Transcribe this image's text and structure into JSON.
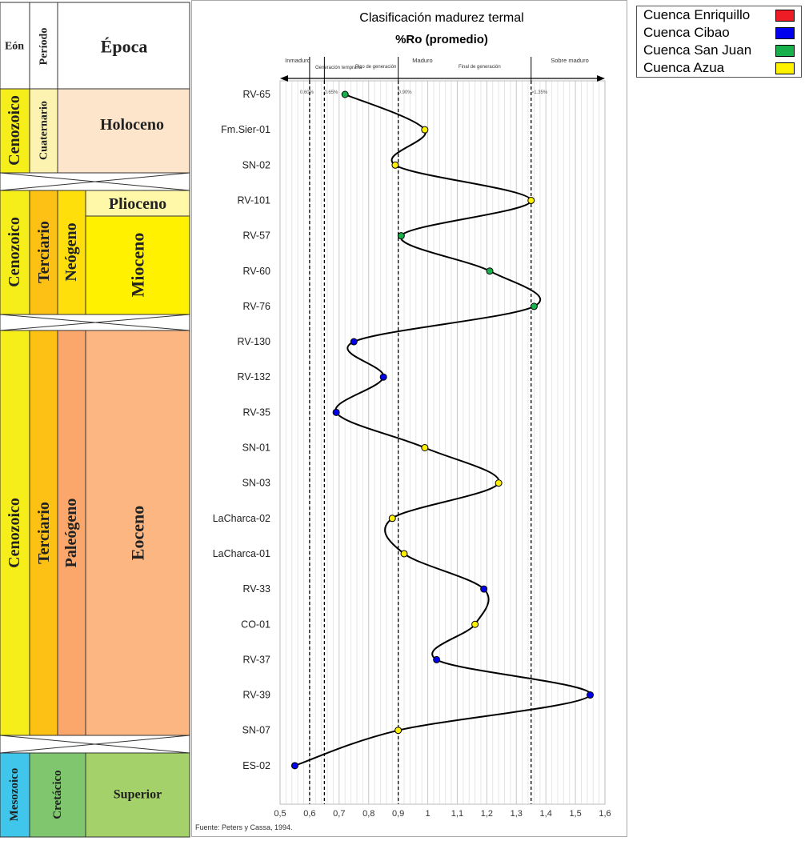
{
  "stratigraphy": {
    "headers": {
      "eon": "Eón",
      "period": "Período",
      "epoch": "Época"
    },
    "blocks": [
      {
        "eon": "Cenozoico",
        "period": "Cuaternario",
        "epochs": [
          "Holoceno"
        ]
      },
      {
        "eon": "Cenozoico",
        "period": "Terciario",
        "subperiod": "Neógeno",
        "epochs": [
          "Plioceno",
          "Mioceno"
        ]
      },
      {
        "eon": "Cenozoico",
        "period": "Terciario",
        "subperiod": "Paleógeno",
        "epochs": [
          "Eoceno"
        ]
      },
      {
        "eon": "Mesozoico",
        "period": "Cretácico",
        "epochs": [
          "Superior"
        ]
      }
    ],
    "colors": {
      "cenozoic": "#f5ee1a",
      "quaternary": "#fdf3b0",
      "holocene": "#fde5cc",
      "tertiary": "#fdc014",
      "neogene": "#fede0b",
      "pliocene": "#fef8a8",
      "miocene": "#fff100",
      "paleogene": "#fba66a",
      "eocene": "#fbb682",
      "mesozoic": "#3fc6ea",
      "cretaceous": "#7fc66f",
      "superior": "#a5d16b"
    }
  },
  "legend": [
    {
      "label": "Cuenca Enriquillo",
      "color": "#ee1c25"
    },
    {
      "label": "Cuenca Cibao",
      "color": "#0000ee"
    },
    {
      "label": "Cuenca San Juan",
      "color": "#18b04b"
    },
    {
      "label": "Cuenca Azua",
      "color": "#fef200"
    }
  ],
  "chart_data": {
    "type": "line",
    "title": "Clasificación madurez termal",
    "subtitle": "%Ro (promedio)",
    "source": "Fuente: Peters y Cassa, 1994.",
    "xlim": [
      0.5,
      1.6
    ],
    "xticks": [
      "0,5",
      "0,6",
      "0,7",
      "0,8",
      "0,9",
      "1",
      "1,1",
      "1,2",
      "1,3",
      "1,4",
      "1,5",
      "1,6"
    ],
    "maturity_zones": [
      "Inmaduro",
      "Generación temprana",
      "Pico de generación",
      "Maduro",
      "Final de generación",
      "Sobre maduro"
    ],
    "thresholds": [
      {
        "value": 0.6,
        "label": "0.60%"
      },
      {
        "value": 0.65,
        "label": "0.65%"
      },
      {
        "value": 0.9,
        "label": "0.90%"
      },
      {
        "value": 1.35,
        "label": ">1.35%"
      }
    ],
    "samples": [
      {
        "name": "RV-65",
        "ro": 0.72,
        "basin": "Cuenca San Juan"
      },
      {
        "name": "Fm.Sier-01",
        "ro": 0.99,
        "basin": "Cuenca Azua"
      },
      {
        "name": "SN-02",
        "ro": 0.89,
        "basin": "Cuenca Azua"
      },
      {
        "name": "RV-101",
        "ro": 1.35,
        "basin": "Cuenca Azua"
      },
      {
        "name": "RV-57",
        "ro": 0.91,
        "basin": "Cuenca San Juan"
      },
      {
        "name": "RV-60",
        "ro": 1.21,
        "basin": "Cuenca San Juan"
      },
      {
        "name": "RV-76",
        "ro": 1.36,
        "basin": "Cuenca San Juan"
      },
      {
        "name": "RV-130",
        "ro": 0.75,
        "basin": "Cuenca Cibao"
      },
      {
        "name": "RV-132",
        "ro": 0.85,
        "basin": "Cuenca Cibao"
      },
      {
        "name": "RV-35",
        "ro": 0.69,
        "basin": "Cuenca Cibao"
      },
      {
        "name": "SN-01",
        "ro": 0.99,
        "basin": "Cuenca Azua"
      },
      {
        "name": "SN-03",
        "ro": 1.24,
        "basin": "Cuenca Azua"
      },
      {
        "name": "LaCharca-02",
        "ro": 0.88,
        "basin": "Cuenca Azua"
      },
      {
        "name": "LaCharca-01",
        "ro": 0.92,
        "basin": "Cuenca Azua"
      },
      {
        "name": "RV-33",
        "ro": 1.19,
        "basin": "Cuenca Cibao"
      },
      {
        "name": "CO-01",
        "ro": 1.16,
        "basin": "Cuenca Azua"
      },
      {
        "name": "RV-37",
        "ro": 1.03,
        "basin": "Cuenca Cibao"
      },
      {
        "name": "RV-39",
        "ro": 1.55,
        "basin": "Cuenca Cibao"
      },
      {
        "name": "SN-07",
        "ro": 0.9,
        "basin": "Cuenca Azua"
      },
      {
        "name": "ES-02",
        "ro": 0.55,
        "basin": "Cuenca Cibao"
      }
    ]
  }
}
